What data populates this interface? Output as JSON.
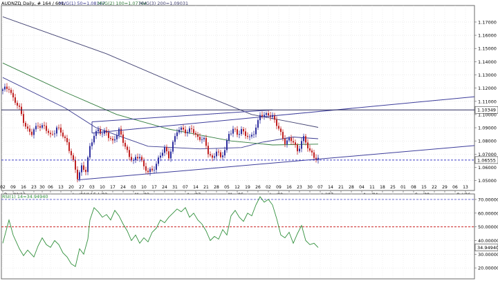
{
  "header": {
    "symbol": "AUDNZD",
    "info": ", Daily, # 164 / 601, ",
    "ma1_label": "MVG(1) 50=1.08167",
    "ma2_label": "MVG(2) 100=1.07764",
    "ma3_label": "MVG(3) 200=1.09031",
    "rsi_label": "RSI(1) 14=34.94940"
  },
  "colors": {
    "bull": "#2e2e9e",
    "bear": "#c02020",
    "ma50": "#3a3a90",
    "ma100": "#2e7a3a",
    "ma200": "#404070",
    "trend": "#3b3b9a",
    "hline": "#28285a",
    "dashed": "#4040c8",
    "rsi_line": "#2f8f3a",
    "rsi70": "#5555cc",
    "rsi50": "#cc2222"
  },
  "chart_data": [
    {
      "type": "candlestick",
      "title": "AUDNZD",
      "ylim": [
        1.0425,
        1.1825
      ],
      "y_ticks": [
        "1.05000",
        "1.06000",
        "1.07000",
        "1.08000",
        "1.09000",
        "1.10000",
        "1.11000",
        "1.12000",
        "1.13000",
        "1.14000",
        "1.15000",
        "1.16000",
        "1.17000"
      ],
      "x_ticks": [
        {
          "i": 0,
          "label": "02"
        },
        {
          "i": 5,
          "label": "09"
        },
        {
          "i": 10,
          "label": "16"
        },
        {
          "i": 15,
          "label": "23"
        },
        {
          "i": 19,
          "label": "30"
        },
        {
          "i": 23,
          "label": "06"
        },
        {
          "i": 28,
          "label": "13"
        },
        {
          "i": 33,
          "label": "20"
        },
        {
          "i": 38,
          "label": "27"
        },
        {
          "i": 43,
          "label": "03"
        },
        {
          "i": 48,
          "label": "10"
        },
        {
          "i": 53,
          "label": "17"
        },
        {
          "i": 58,
          "label": "24"
        },
        {
          "i": 63,
          "label": "03"
        },
        {
          "i": 68,
          "label": "10"
        },
        {
          "i": 73,
          "label": "17"
        },
        {
          "i": 78,
          "label": "24"
        },
        {
          "i": 83,
          "label": "31"
        },
        {
          "i": 88,
          "label": "07"
        },
        {
          "i": 93,
          "label": "14"
        },
        {
          "i": 98,
          "label": "21"
        },
        {
          "i": 103,
          "label": "28"
        },
        {
          "i": 108,
          "label": "05"
        },
        {
          "i": 113,
          "label": "12"
        },
        {
          "i": 118,
          "label": "19"
        },
        {
          "i": 123,
          "label": "26"
        },
        {
          "i": 128,
          "label": "02"
        },
        {
          "i": 133,
          "label": "09"
        },
        {
          "i": 138,
          "label": "16"
        },
        {
          "i": 143,
          "label": "23"
        },
        {
          "i": 148,
          "label": "30"
        },
        {
          "i": 153,
          "label": "07"
        },
        {
          "i": 158,
          "label": "14"
        },
        {
          "i": 163,
          "label": "21"
        },
        {
          "i": 168,
          "label": "28"
        },
        {
          "i": 173,
          "label": "04"
        },
        {
          "i": 178,
          "label": "11"
        },
        {
          "i": 183,
          "label": "18"
        },
        {
          "i": 188,
          "label": "25"
        },
        {
          "i": 193,
          "label": "01"
        },
        {
          "i": 198,
          "label": "08"
        },
        {
          "i": 203,
          "label": "15"
        },
        {
          "i": 208,
          "label": "22"
        },
        {
          "i": 213,
          "label": "29"
        },
        {
          "i": 218,
          "label": "06"
        },
        {
          "i": 223,
          "label": "13"
        }
      ],
      "month_labels": [
        {
          "i": 0,
          "label": "Dec/02/13"
        },
        {
          "i": 33,
          "label": "Jan/06/14"
        },
        {
          "i": 43,
          "label": "Feb/03"
        },
        {
          "i": 63,
          "label": "Mar/03"
        },
        {
          "i": 88,
          "label": "Apr/07"
        },
        {
          "i": 108,
          "label": "May/05"
        },
        {
          "i": 128,
          "label": "Jun/02"
        },
        {
          "i": 153,
          "label": "Jul/07"
        },
        {
          "i": 173,
          "label": "Aug/04"
        },
        {
          "i": 198,
          "label": "Sep/08"
        },
        {
          "i": 218,
          "label": "Oct/06"
        }
      ],
      "price_keypoints": [
        [
          0,
          1.118
        ],
        [
          3,
          1.121
        ],
        [
          5,
          1.112
        ],
        [
          8,
          1.104
        ],
        [
          10,
          1.096
        ],
        [
          12,
          1.088
        ],
        [
          14,
          1.085
        ],
        [
          17,
          1.093
        ],
        [
          20,
          1.09
        ],
        [
          23,
          1.084
        ],
        [
          26,
          1.09
        ],
        [
          29,
          1.084
        ],
        [
          31,
          1.079
        ],
        [
          33,
          1.07
        ],
        [
          35,
          1.057
        ],
        [
          36,
          1.052
        ],
        [
          38,
          1.061
        ],
        [
          40,
          1.058
        ],
        [
          42,
          1.074
        ],
        [
          44,
          1.085
        ],
        [
          46,
          1.089
        ],
        [
          48,
          1.085
        ],
        [
          50,
          1.086
        ],
        [
          53,
          1.08
        ],
        [
          56,
          1.087
        ],
        [
          59,
          1.077
        ],
        [
          61,
          1.068
        ],
        [
          63,
          1.064
        ],
        [
          66,
          1.07
        ],
        [
          68,
          1.06
        ],
        [
          70,
          1.056
        ],
        [
          72,
          1.058
        ],
        [
          75,
          1.066
        ],
        [
          78,
          1.074
        ],
        [
          80,
          1.069
        ],
        [
          82,
          1.078
        ],
        [
          84,
          1.087
        ],
        [
          87,
          1.09
        ],
        [
          89,
          1.086
        ],
        [
          91,
          1.089
        ],
        [
          93,
          1.084
        ],
        [
          95,
          1.083
        ],
        [
          97,
          1.08
        ],
        [
          99,
          1.071
        ],
        [
          101,
          1.067
        ],
        [
          103,
          1.073
        ],
        [
          105,
          1.066
        ],
        [
          107,
          1.074
        ],
        [
          109,
          1.086
        ],
        [
          111,
          1.088
        ],
        [
          113,
          1.085
        ],
        [
          115,
          1.089
        ],
        [
          117,
          1.085
        ],
        [
          119,
          1.081
        ],
        [
          121,
          1.087
        ],
        [
          123,
          1.095
        ],
        [
          124,
          1.1
        ],
        [
          126,
          1.098
        ],
        [
          128,
          1.101
        ],
        [
          130,
          1.099
        ],
        [
          132,
          1.092
        ],
        [
          134,
          1.085
        ],
        [
          136,
          1.08
        ],
        [
          138,
          1.081
        ],
        [
          140,
          1.079
        ],
        [
          142,
          1.072
        ],
        [
          144,
          1.081
        ],
        [
          145,
          1.082
        ],
        [
          146,
          1.078
        ],
        [
          148,
          1.072
        ],
        [
          150,
          1.069
        ],
        [
          152,
          1.066
        ]
      ],
      "moving_averages": [
        {
          "name": "MVG(1) 50",
          "points": [
            [
              0,
              1.128
            ],
            [
              30,
              1.105
            ],
            [
              45,
              1.09
            ],
            [
              70,
              1.076
            ],
            [
              95,
              1.074
            ],
            [
              115,
              1.075
            ],
            [
              125,
              1.079
            ],
            [
              140,
              1.083
            ],
            [
              152,
              1.0817
            ]
          ]
        },
        {
          "name": "MVG(2) 100",
          "points": [
            [
              0,
              1.139
            ],
            [
              30,
              1.117
            ],
            [
              55,
              1.1
            ],
            [
              80,
              1.089
            ],
            [
              110,
              1.08
            ],
            [
              130,
              1.077
            ],
            [
              152,
              1.0776
            ]
          ]
        },
        {
          "name": "MVG(3) 200",
          "points": [
            [
              0,
              1.174
            ],
            [
              50,
              1.146
            ],
            [
              90,
              1.119
            ],
            [
              120,
              1.1
            ],
            [
              140,
              1.094
            ],
            [
              152,
              1.0903
            ]
          ]
        }
      ],
      "trendlines": [
        {
          "from": [
            36,
            1.0505
          ],
          "to": [
            230,
            1.0765
          ]
        },
        {
          "from": [
            43,
            1.086
          ],
          "to": [
            230,
            1.1135
          ]
        },
        {
          "from": [
            43,
            1.086
          ],
          "to": [
            43,
            1.0945
          ]
        },
        {
          "from": [
            43,
            1.0945
          ],
          "to": [
            130,
            1.1035
          ]
        }
      ],
      "horizontal_levels": [
        {
          "value": 1.10349,
          "label": "1.10349",
          "style": "solid"
        },
        {
          "value": 1.06555,
          "label": "1.06555",
          "style": "dashed"
        }
      ]
    },
    {
      "type": "line",
      "title": "RSI(1) 14=34.94940",
      "ylim": [
        12,
        74
      ],
      "y_ticks": [
        "20.00000",
        "30.00000",
        "40.00000",
        "50.00000",
        "60.00000",
        "70.00000"
      ],
      "levels": [
        70,
        50
      ],
      "current_value": "34.94940",
      "rsi_keypoints": [
        [
          0,
          38
        ],
        [
          3,
          55
        ],
        [
          5,
          44
        ],
        [
          8,
          34
        ],
        [
          10,
          29
        ],
        [
          12,
          33
        ],
        [
          15,
          28
        ],
        [
          17,
          36
        ],
        [
          19,
          42
        ],
        [
          21,
          37
        ],
        [
          23,
          35
        ],
        [
          25,
          40
        ],
        [
          27,
          37
        ],
        [
          29,
          31
        ],
        [
          31,
          28
        ],
        [
          33,
          23
        ],
        [
          35,
          21
        ],
        [
          37,
          34
        ],
        [
          39,
          30
        ],
        [
          41,
          41
        ],
        [
          42,
          55
        ],
        [
          44,
          64
        ],
        [
          46,
          61
        ],
        [
          48,
          57
        ],
        [
          50,
          59
        ],
        [
          52,
          55
        ],
        [
          54,
          62
        ],
        [
          56,
          58
        ],
        [
          58,
          52
        ],
        [
          60,
          47
        ],
        [
          62,
          40
        ],
        [
          64,
          44
        ],
        [
          66,
          38
        ],
        [
          68,
          42
        ],
        [
          70,
          39
        ],
        [
          72,
          46
        ],
        [
          74,
          49
        ],
        [
          76,
          55
        ],
        [
          78,
          53
        ],
        [
          80,
          57
        ],
        [
          82,
          60
        ],
        [
          84,
          63
        ],
        [
          86,
          61
        ],
        [
          88,
          64
        ],
        [
          90,
          57
        ],
        [
          92,
          60
        ],
        [
          94,
          55
        ],
        [
          96,
          52
        ],
        [
          98,
          47
        ],
        [
          100,
          40
        ],
        [
          102,
          43
        ],
        [
          104,
          41
        ],
        [
          106,
          48
        ],
        [
          108,
          44
        ],
        [
          110,
          58
        ],
        [
          112,
          62
        ],
        [
          114,
          57
        ],
        [
          116,
          54
        ],
        [
          118,
          60
        ],
        [
          120,
          58
        ],
        [
          122,
          66
        ],
        [
          124,
          72
        ],
        [
          126,
          68
        ],
        [
          128,
          70
        ],
        [
          130,
          66
        ],
        [
          132,
          56
        ],
        [
          134,
          44
        ],
        [
          136,
          42
        ],
        [
          138,
          46
        ],
        [
          140,
          38
        ],
        [
          142,
          45
        ],
        [
          144,
          51
        ],
        [
          146,
          40
        ],
        [
          148,
          37
        ],
        [
          150,
          38
        ],
        [
          152,
          34.9
        ]
      ]
    }
  ]
}
